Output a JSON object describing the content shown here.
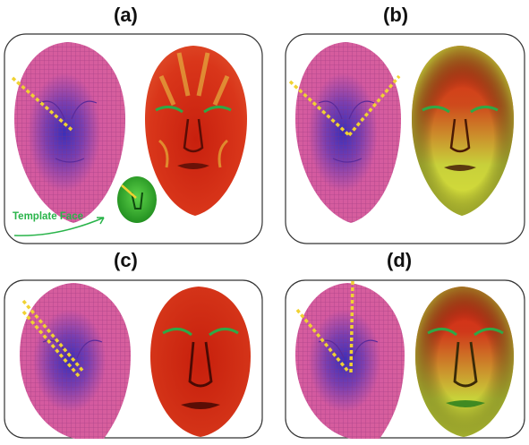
{
  "panels": [
    {
      "id": "a",
      "label": "(a)"
    },
    {
      "id": "b",
      "label": "(b)"
    },
    {
      "id": "c",
      "label": "(c)"
    },
    {
      "id": "d",
      "label": "(d)"
    }
  ],
  "template_label": "Template Face",
  "colors": {
    "mesh_fill": "#d45aa0",
    "mesh_line": "#9b3a8a",
    "mesh_center": "#3a2fb8",
    "guide_line": "#f0d232",
    "heat_red": "#d92a14",
    "heat_yellow": "#d8e23a",
    "template_green": "#2fa62f",
    "annotation_green": "#29b44a",
    "panel_border": "#333333"
  }
}
